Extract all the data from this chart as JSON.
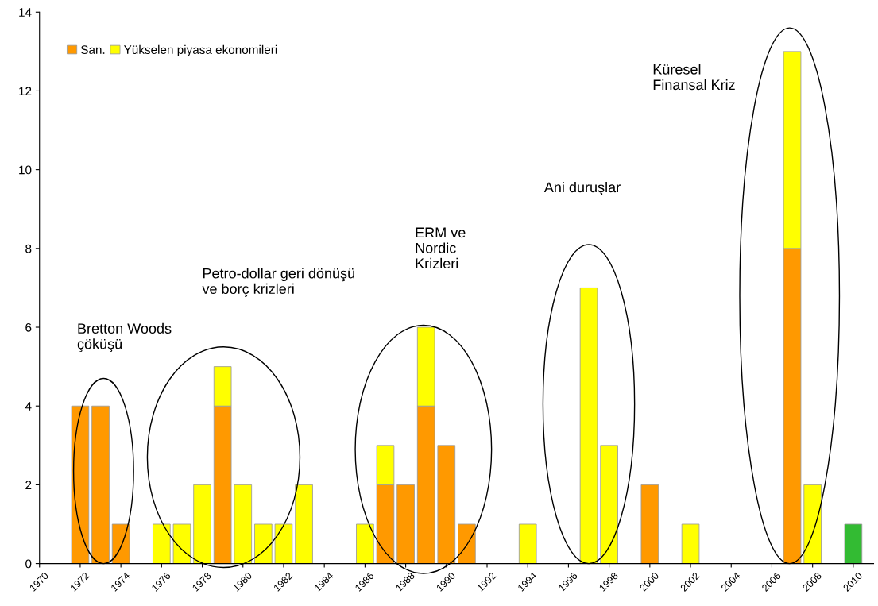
{
  "chart_data": {
    "type": "bar",
    "stacked": true,
    "x": [
      1972,
      1973,
      1974,
      1976,
      1977,
      1978,
      1979,
      1980,
      1981,
      1982,
      1983,
      1986,
      1987,
      1988,
      1989,
      1990,
      1991,
      1994,
      1997,
      1998,
      2000,
      2002,
      2007,
      2008,
      2010
    ],
    "series": [
      {
        "name": "San.",
        "color": "#ff9900",
        "values": [
          4,
          4,
          1,
          null,
          null,
          null,
          4,
          null,
          null,
          null,
          null,
          null,
          2,
          2,
          4,
          3,
          1,
          null,
          null,
          null,
          2,
          null,
          8,
          null,
          null
        ]
      },
      {
        "name": "Yükselen piyasa ekonomileri",
        "color": "#ffff00",
        "values": [
          null,
          null,
          null,
          1,
          1,
          2,
          1,
          2,
          1,
          1,
          2,
          1,
          1,
          null,
          2,
          null,
          null,
          1,
          7,
          3,
          null,
          1,
          5,
          2,
          null
        ]
      },
      {
        "color": "#33bb33",
        "values": [
          null,
          null,
          null,
          null,
          null,
          null,
          null,
          null,
          null,
          null,
          null,
          null,
          null,
          null,
          null,
          null,
          null,
          null,
          null,
          null,
          null,
          null,
          null,
          null,
          1
        ]
      }
    ],
    "xlim": [
      1970,
      2011
    ],
    "xticks": [
      1970,
      1972,
      1974,
      1976,
      1978,
      1980,
      1982,
      1984,
      1986,
      1988,
      1990,
      1992,
      1994,
      1996,
      1998,
      2000,
      2002,
      2004,
      2006,
      2008,
      2010
    ],
    "ylim": [
      0,
      14
    ],
    "yticks": [
      0,
      2,
      4,
      6,
      8,
      10,
      12,
      14
    ],
    "grid": false,
    "legend": "top left",
    "annotations": [
      "Bretton Woods\nçöküşü",
      "Petro-dollar geri dönüşü\nve borç krizleri",
      "ERM ve\nNordic\nKrizleri",
      "Ani duruşlar",
      "Küresel\nFinansal Kriz"
    ]
  }
}
